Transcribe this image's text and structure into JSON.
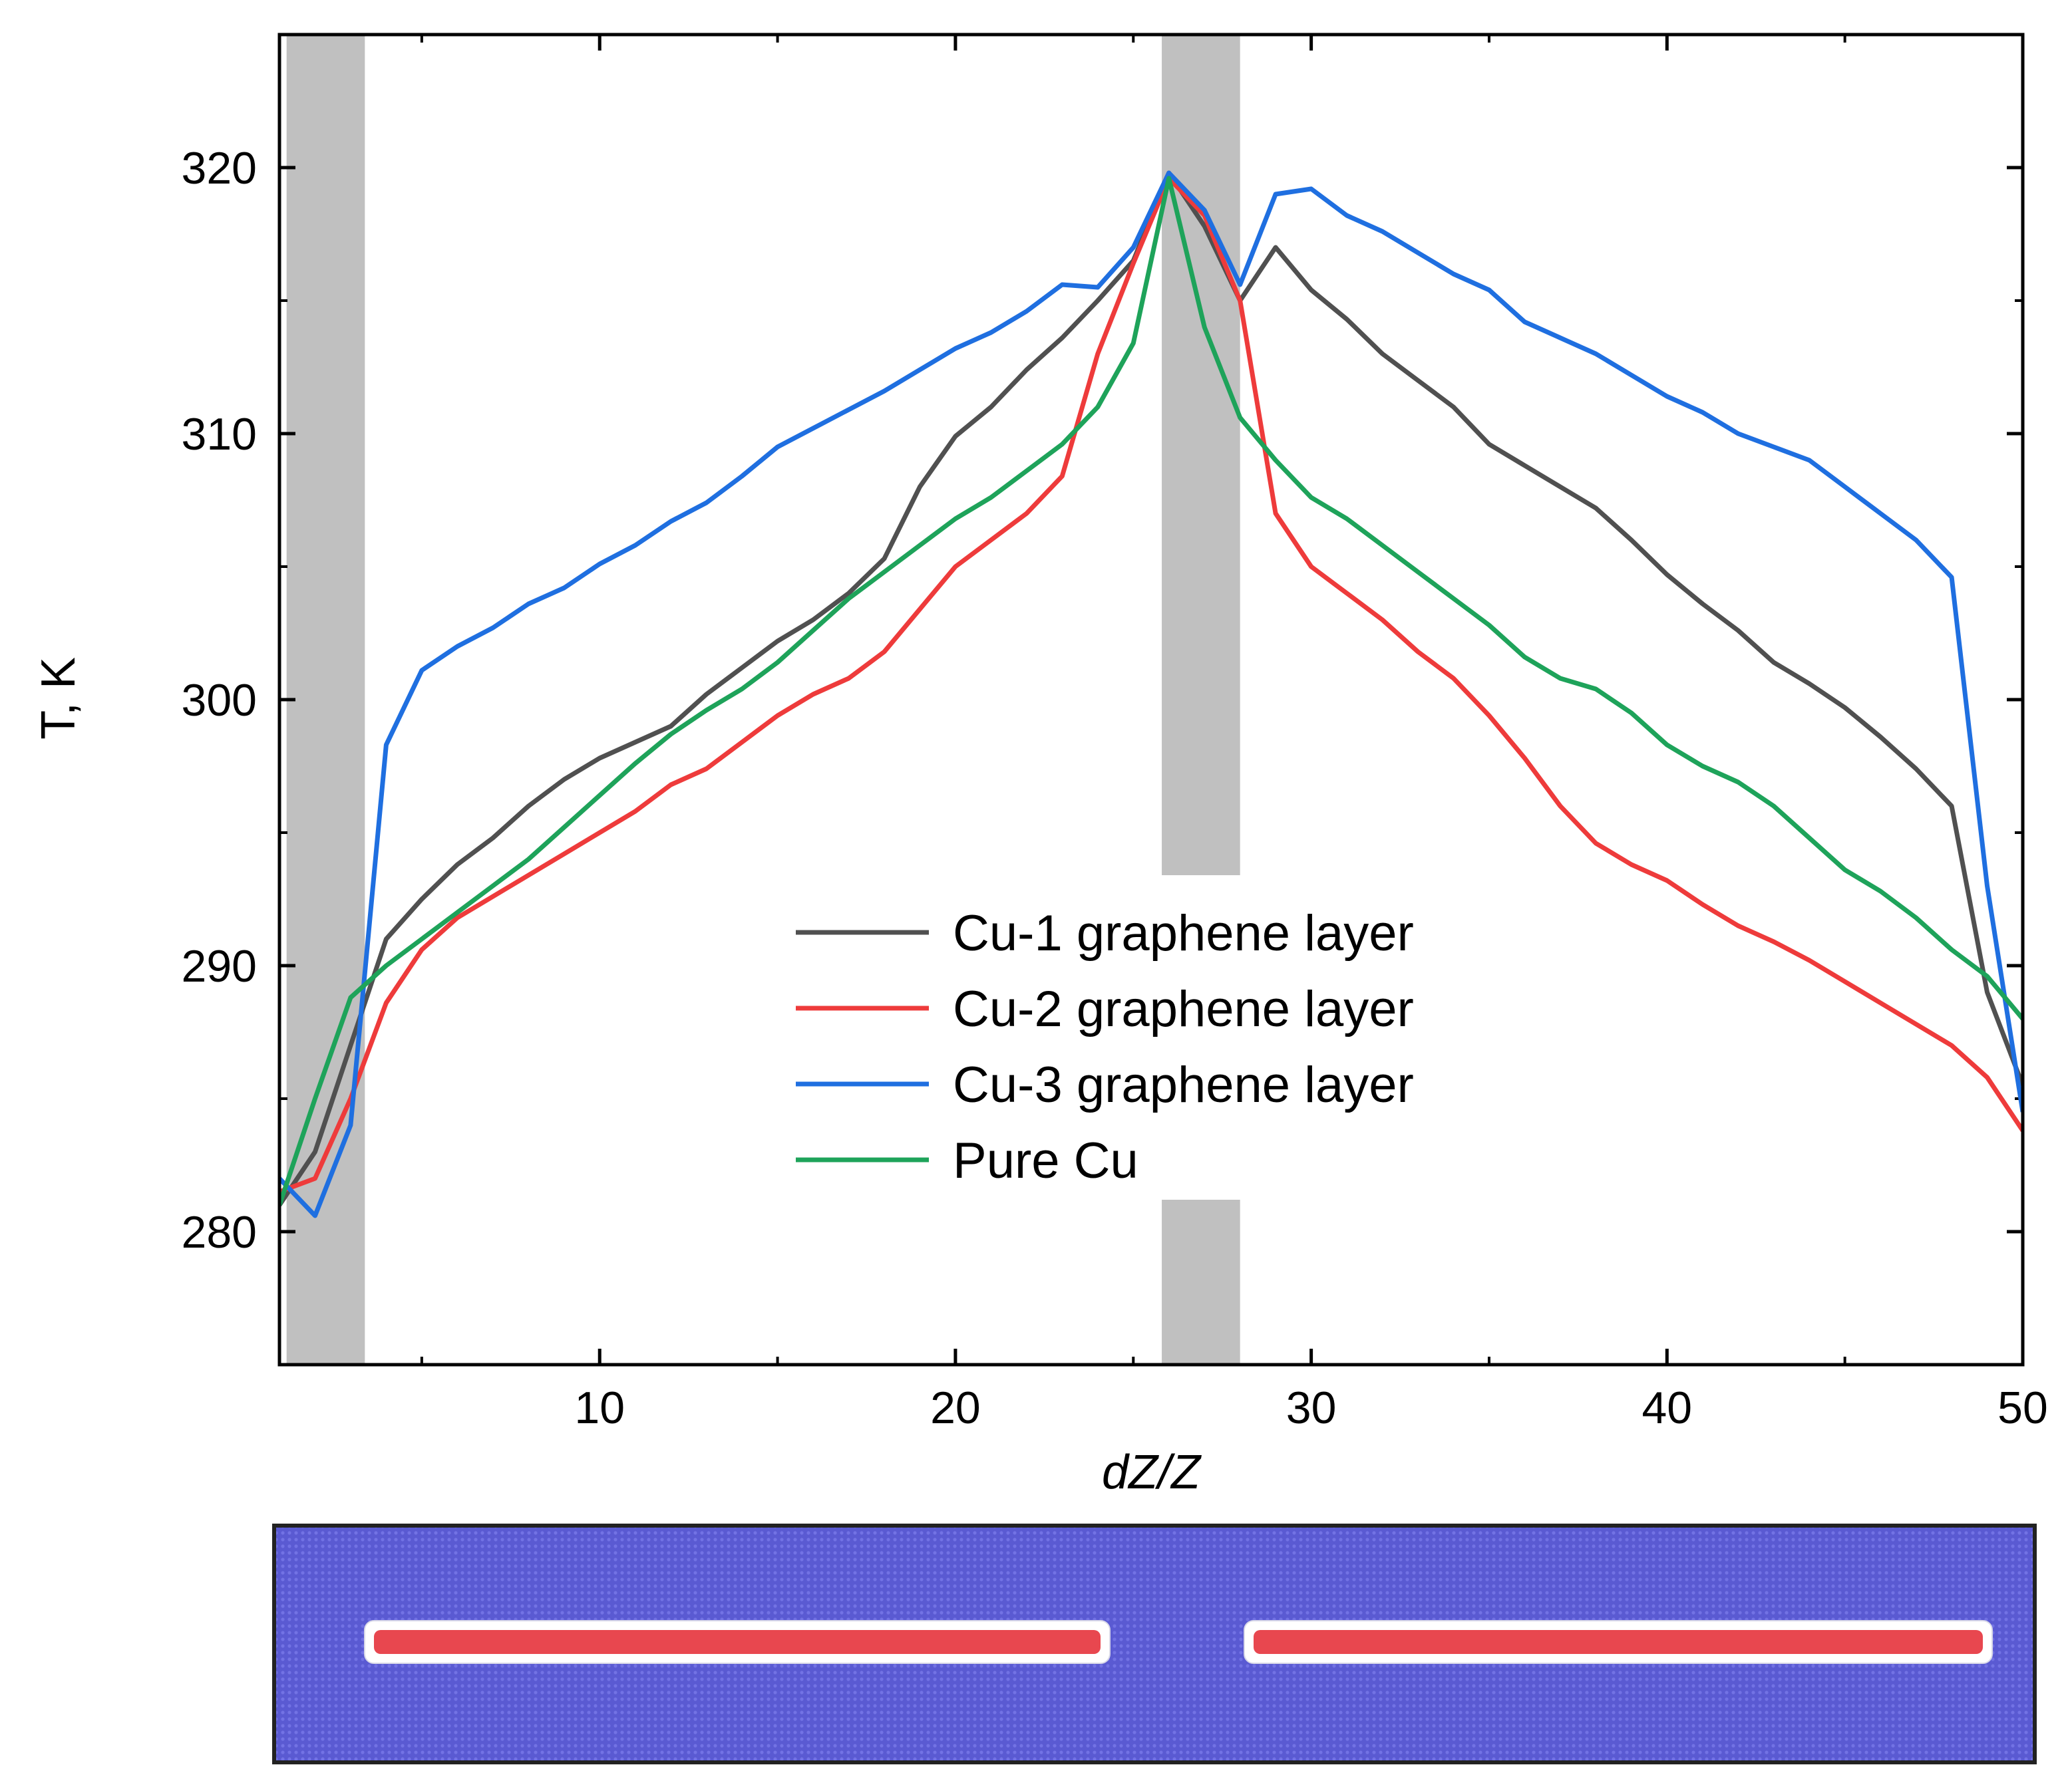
{
  "chart_data": {
    "type": "line",
    "title": "",
    "xlabel": "dZ/Z",
    "ylabel": "T, K",
    "xlim": [
      1,
      50
    ],
    "ylim": [
      275,
      325
    ],
    "xticks": [
      10,
      20,
      30,
      40,
      50
    ],
    "yticks": [
      280,
      290,
      300,
      310,
      320
    ],
    "shaded_regions": [
      {
        "x0": 1.2,
        "x1": 3.4,
        "y0": 275,
        "y1": 325
      },
      {
        "x0": 25.8,
        "x1": 28.0,
        "y0": 293.4,
        "y1": 325
      },
      {
        "x0": 25.8,
        "x1": 28.0,
        "y0": 275,
        "y1": 281.2
      }
    ],
    "legend_position": "center",
    "series": [
      {
        "name": "Cu-1 graphene layer",
        "color": "#505050",
        "x": [
          1,
          2,
          3,
          4,
          5,
          6,
          7,
          8,
          9,
          10,
          11,
          12,
          13,
          14,
          15,
          16,
          17,
          18,
          19,
          20,
          21,
          22,
          23,
          24,
          25,
          26,
          27,
          28,
          29,
          30,
          31,
          32,
          33,
          34,
          35,
          36,
          37,
          38,
          39,
          40,
          41,
          42,
          43,
          44,
          45,
          46,
          47,
          48,
          49,
          50
        ],
        "y": [
          281,
          283,
          287,
          291,
          292.5,
          293.8,
          294.8,
          296,
          297,
          297.8,
          298.4,
          299,
          300.2,
          301.2,
          302.2,
          303,
          304,
          305.3,
          308,
          309.9,
          311,
          312.4,
          313.6,
          315,
          316.5,
          319.8,
          317.8,
          315,
          317,
          315.4,
          314.3,
          313,
          312,
          311,
          309.6,
          308.8,
          308,
          307.2,
          306,
          304.7,
          303.6,
          302.6,
          301.4,
          300.6,
          299.7,
          298.6,
          297.4,
          296,
          289,
          285.5
        ]
      },
      {
        "name": "Cu-2 graphene layer",
        "color": "#ee3b3b",
        "x": [
          1,
          2,
          3,
          4,
          5,
          6,
          7,
          8,
          9,
          10,
          11,
          12,
          13,
          14,
          15,
          16,
          17,
          18,
          19,
          20,
          21,
          22,
          23,
          24,
          25,
          26,
          27,
          28,
          29,
          30,
          31,
          32,
          33,
          34,
          35,
          36,
          37,
          38,
          39,
          40,
          41,
          42,
          43,
          44,
          45,
          46,
          47,
          48,
          49,
          50
        ],
        "y": [
          281.5,
          282,
          285,
          288.6,
          290.6,
          291.8,
          292.6,
          293.4,
          294.2,
          295,
          295.8,
          296.8,
          297.4,
          298.4,
          299.4,
          300.2,
          300.8,
          301.8,
          303.4,
          305,
          306,
          307,
          308.4,
          313,
          316.4,
          319.6,
          318.2,
          315,
          307,
          305,
          304,
          303,
          301.8,
          300.8,
          299.4,
          297.8,
          296,
          294.6,
          293.8,
          293.2,
          292.3,
          291.5,
          290.9,
          290.2,
          289.4,
          288.6,
          287.8,
          287,
          285.8,
          283.8
        ]
      },
      {
        "name": "Cu-3 graphene layer",
        "color": "#1f6fe0",
        "x": [
          1,
          2,
          3,
          4,
          5,
          6,
          7,
          8,
          9,
          10,
          11,
          12,
          13,
          14,
          15,
          16,
          17,
          18,
          19,
          20,
          21,
          22,
          23,
          24,
          25,
          26,
          27,
          28,
          29,
          30,
          31,
          32,
          33,
          34,
          35,
          36,
          37,
          38,
          39,
          40,
          41,
          42,
          43,
          44,
          45,
          46,
          47,
          48,
          49,
          50
        ],
        "y": [
          282,
          280.6,
          284,
          298.3,
          301.1,
          302,
          302.7,
          303.6,
          304.2,
          305.1,
          305.8,
          306.7,
          307.4,
          308.4,
          309.5,
          310.2,
          310.9,
          311.6,
          312.4,
          313.2,
          313.8,
          314.6,
          315.6,
          315.5,
          317,
          319.8,
          318.4,
          315.6,
          319,
          319.2,
          318.2,
          317.6,
          316.8,
          316,
          315.4,
          314.2,
          313.6,
          313,
          312.2,
          311.4,
          310.8,
          310,
          309.5,
          309,
          308,
          307,
          306,
          304.6,
          293,
          284.5
        ]
      },
      {
        "name": "Pure Cu",
        "color": "#1ea35a",
        "x": [
          1,
          2,
          3,
          4,
          5,
          6,
          7,
          8,
          9,
          10,
          11,
          12,
          13,
          14,
          15,
          16,
          17,
          18,
          19,
          20,
          21,
          22,
          23,
          24,
          25,
          26,
          27,
          28,
          29,
          30,
          31,
          32,
          33,
          34,
          35,
          36,
          37,
          38,
          39,
          40,
          41,
          42,
          43,
          44,
          45,
          46,
          47,
          48,
          49,
          50
        ],
        "y": [
          281,
          285,
          288.8,
          290,
          291,
          292,
          293,
          294,
          295.2,
          296.4,
          297.6,
          298.7,
          299.6,
          300.4,
          301.4,
          302.6,
          303.8,
          304.8,
          305.8,
          306.8,
          307.6,
          308.6,
          309.6,
          311,
          313.4,
          319.6,
          314,
          310.6,
          309,
          307.6,
          306.8,
          305.8,
          304.8,
          303.8,
          302.8,
          301.6,
          300.8,
          300.4,
          299.5,
          298.3,
          297.5,
          296.9,
          296,
          294.8,
          293.6,
          292.8,
          291.8,
          290.6,
          289.6,
          288
        ]
      }
    ]
  },
  "inset": {
    "background_color": "#5b5bd0",
    "rod_color": "#e8474f"
  }
}
